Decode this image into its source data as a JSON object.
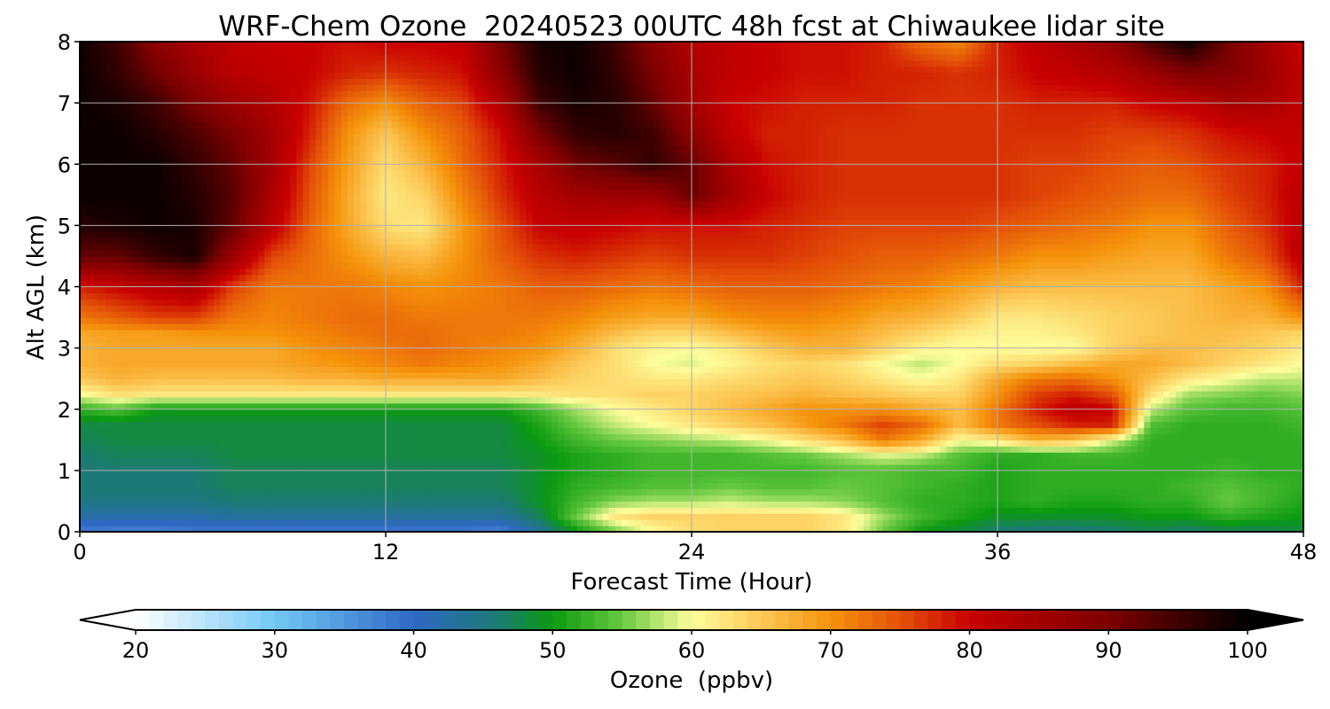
{
  "chart_data": {
    "type": "heatmap",
    "title": "WRF-Chem Ozone  20240523 00UTC 48h fcst at Chiwaukee lidar site",
    "xlabel": "Forecast Time (Hour)",
    "ylabel": "Alt AGL (km)",
    "xlim": [
      0,
      48
    ],
    "ylim": [
      0,
      8
    ],
    "xticks": [
      0,
      12,
      24,
      36,
      48
    ],
    "yticks": [
      0,
      1,
      2,
      3,
      4,
      5,
      6,
      7,
      8
    ],
    "grid": true,
    "colorbar": {
      "label": "Ozone  (ppbv)",
      "min": 20,
      "max": 100,
      "ticks": [
        20,
        30,
        40,
        50,
        60,
        70,
        80,
        90,
        100
      ],
      "extend": "both",
      "orientation": "horizontal",
      "stops": [
        {
          "value": 20,
          "color": "#ffffff"
        },
        {
          "value": 30,
          "color": "#72c8f5"
        },
        {
          "value": 40,
          "color": "#2f68c6"
        },
        {
          "value": 46,
          "color": "#1c7a74"
        },
        {
          "value": 50,
          "color": "#0b9a10"
        },
        {
          "value": 55,
          "color": "#67c940"
        },
        {
          "value": 60,
          "color": "#fefe9c"
        },
        {
          "value": 65,
          "color": "#fcc856"
        },
        {
          "value": 70,
          "color": "#f5920a"
        },
        {
          "value": 75,
          "color": "#e45208"
        },
        {
          "value": 80,
          "color": "#c80000"
        },
        {
          "value": 90,
          "color": "#7d0000"
        },
        {
          "value": 100,
          "color": "#000000"
        }
      ]
    },
    "field": {
      "x_hours": [
        0,
        1.5,
        3,
        4.5,
        6,
        7.5,
        9,
        10.5,
        12,
        13.5,
        15,
        16.5,
        18,
        19.5,
        21,
        22.5,
        24,
        25.5,
        27,
        28.5,
        30,
        31.5,
        33,
        34.5,
        36,
        37.5,
        39,
        40.5,
        42,
        43.5,
        45,
        46.5,
        48
      ],
      "z_km": [
        0,
        0.25,
        0.5,
        0.75,
        1,
        1.25,
        1.5,
        1.75,
        2,
        2.25,
        2.5,
        2.75,
        3,
        3.25,
        3.5,
        4,
        4.5,
        5,
        5.5,
        6,
        6.5,
        7,
        7.5,
        8
      ],
      "ozone_ppbv": [
        [
          38,
          37,
          37,
          38,
          38,
          38,
          38,
          38,
          38,
          38,
          38,
          37,
          43,
          50,
          55,
          60,
          63,
          64,
          64,
          64,
          62,
          55,
          50,
          48,
          46,
          45,
          45,
          46,
          47,
          46,
          47,
          47,
          48
        ],
        [
          42,
          42,
          42,
          42,
          43,
          43,
          43,
          43,
          43,
          43,
          43,
          43,
          47,
          55,
          62,
          64,
          64,
          64,
          64,
          64,
          62,
          57,
          53,
          51,
          49,
          49,
          49,
          49,
          50,
          50,
          52,
          51,
          50
        ],
        [
          45,
          45,
          45,
          45,
          46,
          46,
          46,
          46,
          46,
          46,
          46,
          46,
          49,
          53,
          56,
          57,
          57,
          58,
          57,
          57,
          56,
          54,
          52,
          52,
          51,
          52,
          51,
          51,
          52,
          52,
          55,
          53,
          51
        ],
        [
          46,
          46,
          46,
          46,
          47,
          47,
          47,
          47,
          47,
          47,
          47,
          47,
          49,
          52,
          53,
          54,
          54,
          55,
          54,
          54,
          55,
          54,
          53,
          52,
          51,
          52,
          52,
          52,
          52,
          53,
          54,
          53,
          52
        ],
        [
          46,
          46,
          46,
          46,
          47,
          47,
          47,
          47,
          47,
          47,
          47,
          47,
          49,
          51,
          52,
          53,
          53,
          53,
          53,
          53,
          54,
          54,
          53,
          53,
          51,
          52,
          52,
          52,
          52,
          52,
          53,
          52,
          52
        ],
        [
          46,
          47,
          47,
          47,
          48,
          48,
          48,
          48,
          48,
          48,
          48,
          48,
          49,
          51,
          52,
          53,
          53,
          53,
          54,
          55,
          57,
          59,
          58,
          54,
          52,
          52,
          53,
          53,
          52,
          52,
          52,
          52,
          52
        ],
        [
          47,
          48,
          48,
          48,
          48,
          48,
          48,
          48,
          48,
          48,
          48,
          48,
          50,
          53,
          55,
          56,
          57,
          58,
          60,
          63,
          66,
          72,
          68,
          60,
          62,
          67,
          65,
          59,
          52,
          52,
          52,
          52,
          52
        ],
        [
          48,
          48,
          48,
          48,
          48,
          48,
          48,
          48,
          48,
          48,
          48,
          48,
          51,
          55,
          58,
          60,
          62,
          64,
          66,
          69,
          72,
          76,
          73,
          66,
          72,
          75,
          78,
          78,
          54,
          52,
          52,
          52,
          53
        ],
        [
          52,
          54,
          50,
          50,
          50,
          50,
          50,
          50,
          50,
          50,
          50,
          50,
          53,
          57,
          60,
          62,
          64,
          66,
          68,
          70,
          70,
          70,
          68,
          66,
          72,
          78,
          82,
          80,
          58,
          54,
          53,
          53,
          54
        ],
        [
          60,
          63,
          62,
          62,
          62,
          62,
          62,
          62,
          62,
          62,
          62,
          62,
          62,
          63,
          63,
          64,
          64,
          65,
          66,
          67,
          66,
          65,
          64,
          64,
          70,
          76,
          78,
          75,
          63,
          57,
          56,
          55,
          56
        ],
        [
          65,
          67,
          66,
          66,
          66,
          66,
          67,
          67,
          68,
          68,
          68,
          68,
          66,
          64,
          63,
          62,
          62,
          63,
          64,
          65,
          64,
          62,
          60,
          62,
          68,
          72,
          73,
          70,
          66,
          62,
          60,
          58,
          58
        ],
        [
          67,
          68,
          68,
          68,
          68,
          68,
          69,
          70,
          71,
          72,
          71,
          70,
          68,
          65,
          63,
          60,
          59,
          61,
          63,
          64,
          63,
          60,
          58,
          60,
          63,
          64,
          66,
          68,
          68,
          66,
          64,
          62,
          60
        ],
        [
          67,
          68,
          68,
          68,
          68,
          68,
          70,
          71,
          72,
          73,
          72,
          71,
          70,
          67,
          63,
          61,
          60,
          62,
          65,
          67,
          67,
          64,
          61,
          60,
          60,
          60,
          60,
          64,
          66,
          66,
          65,
          64,
          62
        ],
        [
          68,
          69,
          69,
          70,
          70,
          70,
          71,
          72,
          73,
          73,
          72,
          72,
          71,
          69,
          66,
          64,
          64,
          66,
          68,
          69,
          68,
          66,
          64,
          62,
          61,
          61,
          62,
          64,
          65,
          66,
          66,
          65,
          64
        ],
        [
          72,
          74,
          76,
          76,
          72,
          71,
          72,
          73,
          73,
          72,
          72,
          72,
          72,
          71,
          69,
          68,
          68,
          70,
          71,
          71,
          70,
          68,
          67,
          65,
          62,
          62,
          63,
          64,
          65,
          66,
          67,
          67,
          70
        ],
        [
          78,
          80,
          82,
          84,
          76,
          72,
          72,
          72,
          71,
          70,
          71,
          72,
          74,
          74,
          73,
          72,
          73,
          74,
          74,
          74,
          73,
          72,
          71,
          69,
          67,
          66,
          66,
          66,
          66,
          66,
          68,
          70,
          78
        ],
        [
          92,
          92,
          96,
          98,
          86,
          76,
          73,
          70,
          67,
          66,
          70,
          74,
          77,
          78,
          77,
          76,
          77,
          77,
          77,
          76,
          75,
          74,
          74,
          73,
          72,
          70,
          70,
          69,
          68,
          68,
          72,
          75,
          82
        ],
        [
          97,
          98,
          99,
          98,
          92,
          82,
          74,
          68,
          63,
          62,
          69,
          75,
          80,
          81,
          80,
          79,
          79,
          79,
          78,
          77,
          76,
          76,
          76,
          76,
          75,
          74,
          73,
          72,
          70,
          70,
          74,
          77,
          82
        ],
        [
          99,
          99,
          99,
          97,
          93,
          84,
          75,
          68,
          62,
          64,
          71,
          77,
          82,
          85,
          86,
          86,
          92,
          85,
          80,
          78,
          77,
          77,
          77,
          77,
          77,
          76,
          75,
          74,
          73,
          73,
          76,
          78,
          82
        ],
        [
          99,
          99,
          99,
          96,
          92,
          85,
          76,
          69,
          63,
          67,
          73,
          78,
          84,
          91,
          93,
          96,
          92,
          84,
          79,
          78,
          77,
          77,
          77,
          77,
          77,
          76,
          76,
          75,
          74,
          75,
          77,
          78,
          81
        ],
        [
          99,
          99,
          97,
          94,
          90,
          85,
          78,
          70,
          65,
          70,
          74,
          79,
          90,
          96,
          97,
          95,
          88,
          81,
          78,
          78,
          77,
          77,
          77,
          77,
          77,
          77,
          77,
          76,
          76,
          77,
          79,
          80,
          81
        ],
        [
          99,
          98,
          95,
          90,
          86,
          83,
          79,
          73,
          70,
          74,
          76,
          83,
          95,
          98,
          97,
          92,
          85,
          80,
          79,
          78,
          78,
          78,
          77,
          77,
          77,
          78,
          78,
          78,
          80,
          81,
          84,
          84,
          81
        ],
        [
          99,
          96,
          91,
          86,
          82,
          81,
          80,
          78,
          77,
          78,
          79,
          88,
          97,
          99,
          96,
          90,
          84,
          81,
          80,
          79,
          79,
          78,
          78,
          77,
          78,
          80,
          81,
          83,
          86,
          90,
          89,
          86,
          81
        ],
        [
          99,
          95,
          88,
          84,
          81,
          80,
          80,
          79,
          80,
          80,
          81,
          90,
          98,
          99,
          95,
          88,
          83,
          81,
          80,
          79,
          79,
          78,
          73,
          71,
          78,
          81,
          84,
          87,
          94,
          99,
          91,
          85,
          80
        ]
      ]
    }
  }
}
